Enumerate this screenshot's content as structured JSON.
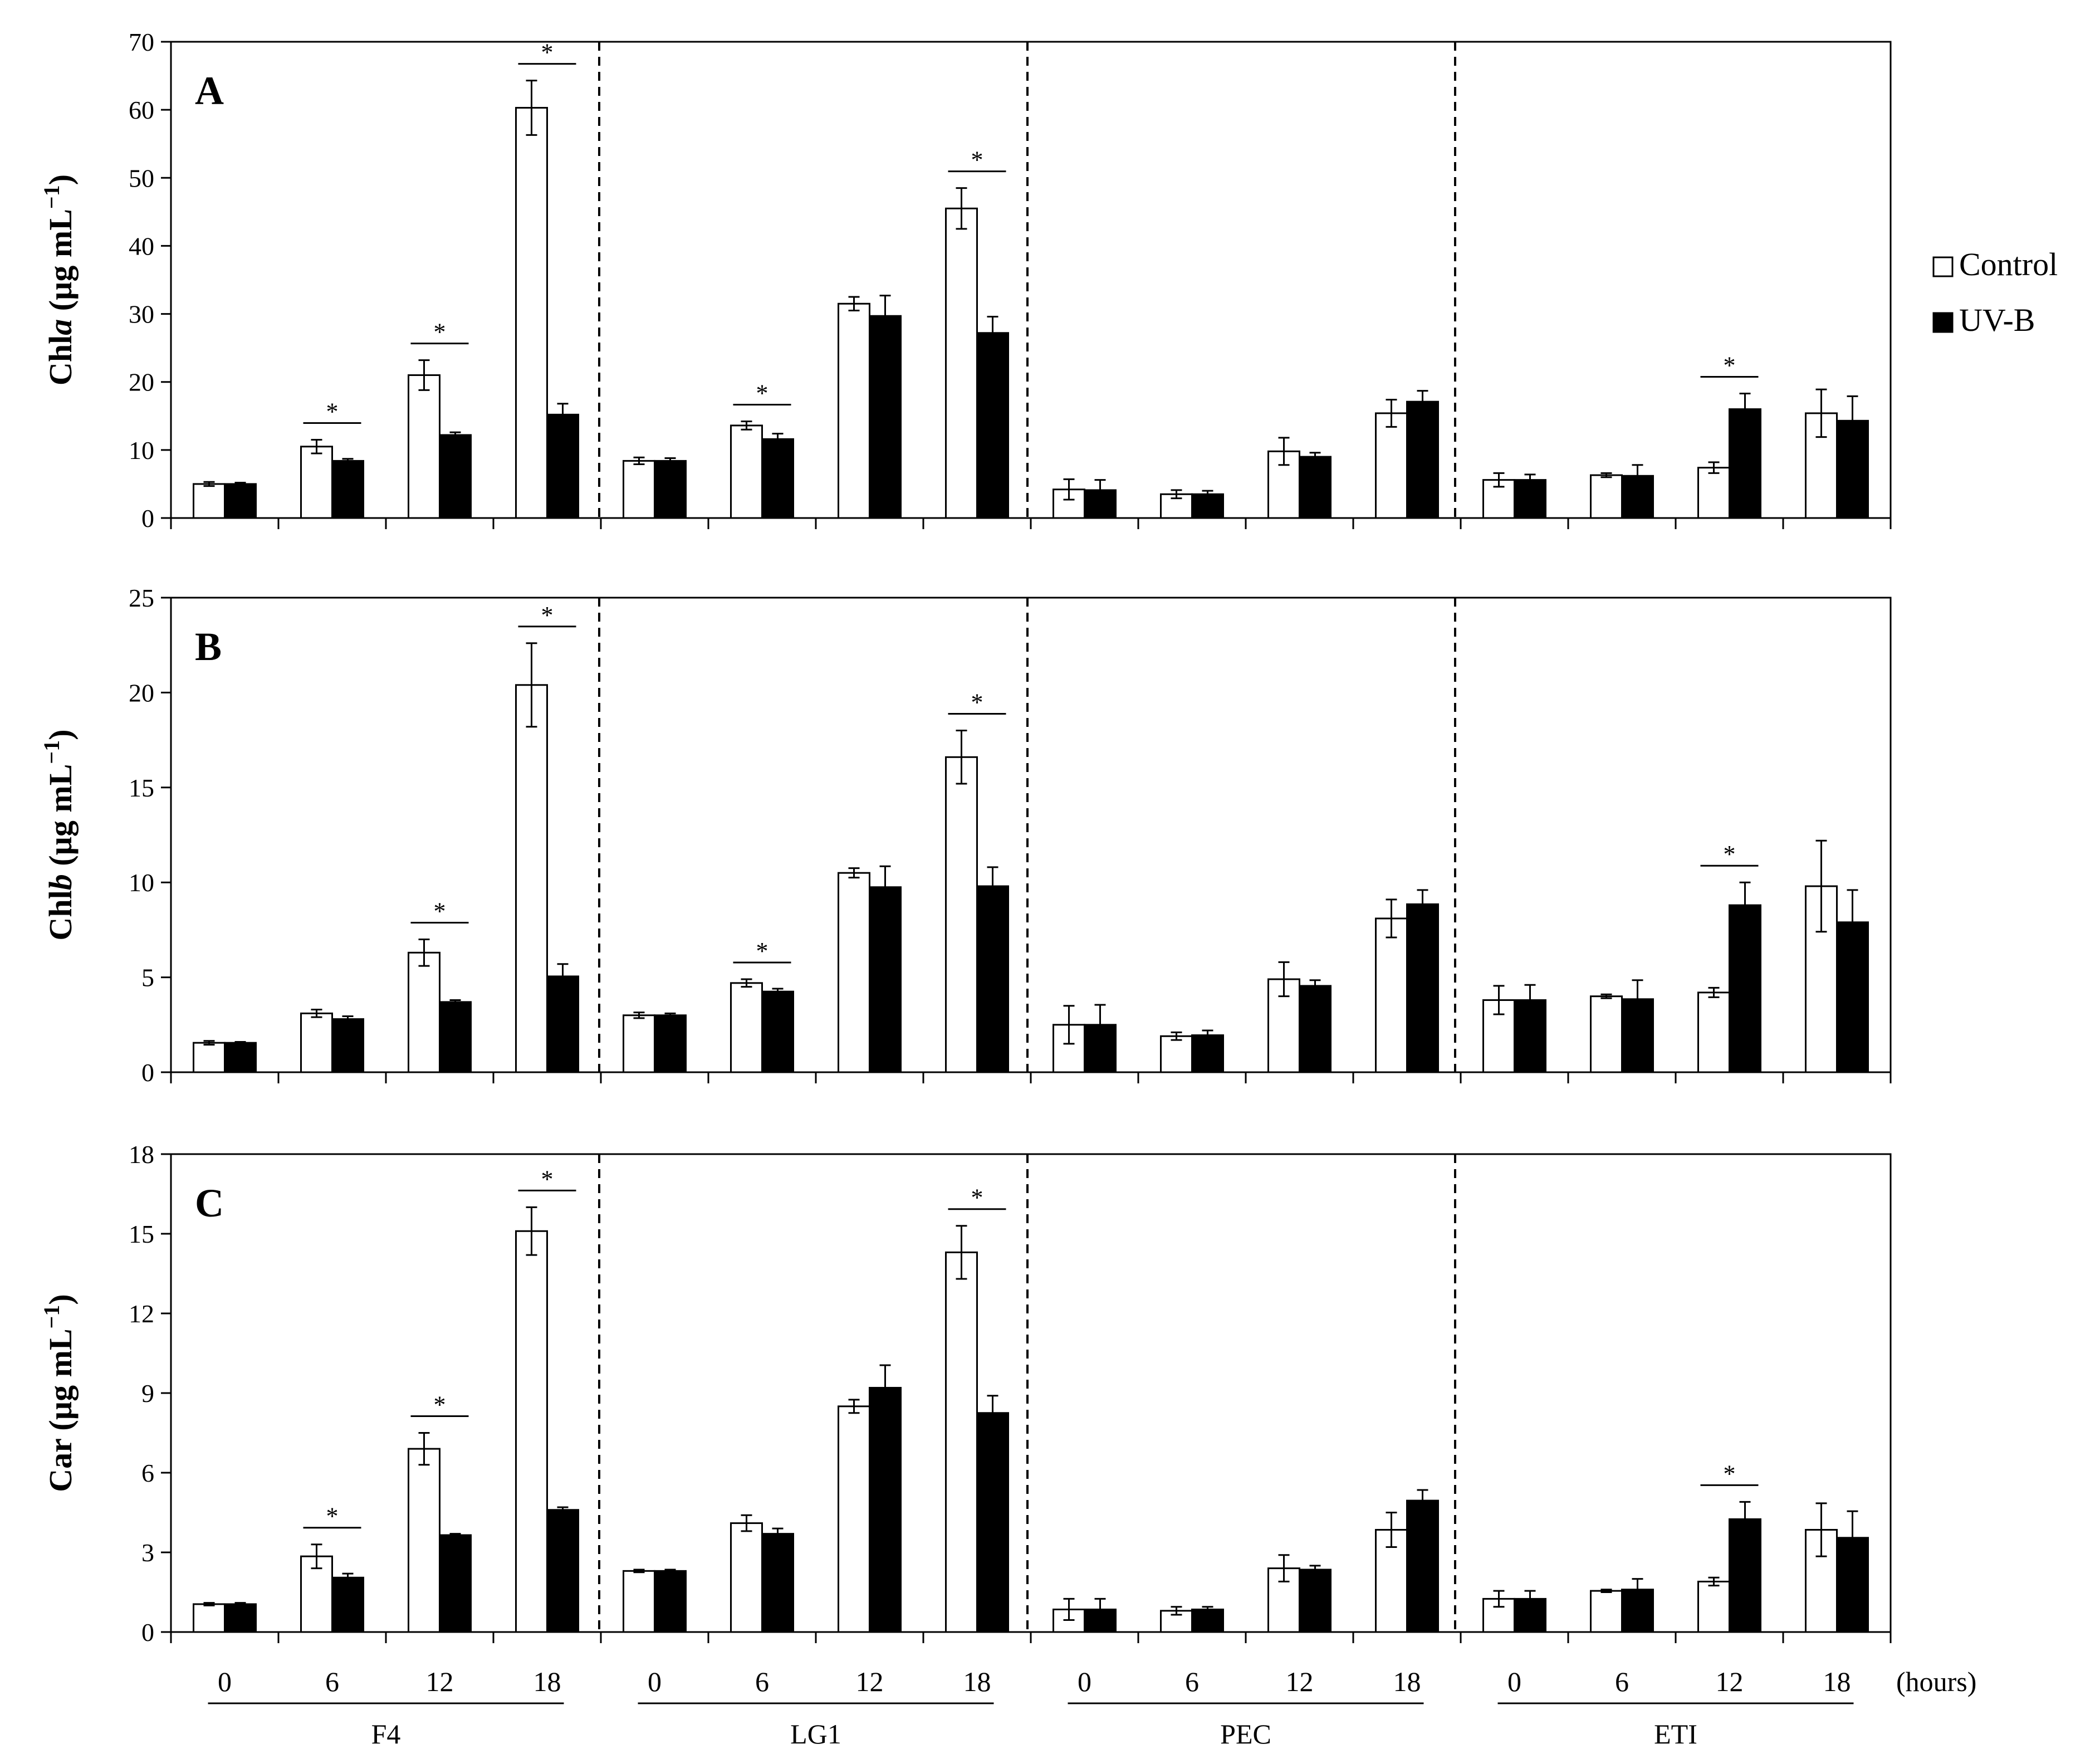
{
  "chart_data": {
    "type": "bar",
    "legend": {
      "position": "right",
      "entries": [
        {
          "name": "Control",
          "color": "#ffffff"
        },
        {
          "name": "UV-B",
          "color": "#000000"
        }
      ]
    },
    "groups": [
      "F4",
      "LG1",
      "PEC",
      "ETI"
    ],
    "times": [
      "0",
      "6",
      "12",
      "18"
    ],
    "x_unit": "(hours)",
    "panels": [
      {
        "letter": "A",
        "ylabel_pre": "Chl",
        "ylabel_italic": "a",
        "ylabel_post": " (µg mL",
        "ylabel_sup": "−1",
        "ylabel_close": ")",
        "ylim": [
          0,
          70
        ],
        "yticks": [
          "0",
          "10",
          "20",
          "30",
          "40",
          "50",
          "60",
          "70"
        ],
        "control": [
          5.0,
          10.5,
          21.0,
          60.3,
          8.4,
          13.6,
          31.5,
          45.5,
          4.2,
          3.5,
          9.8,
          15.4,
          5.6,
          6.3,
          7.4,
          15.4
        ],
        "control_err": [
          0.3,
          1.0,
          2.2,
          4.0,
          0.5,
          0.6,
          1.0,
          3.0,
          1.5,
          0.6,
          2.0,
          2.0,
          1.0,
          0.3,
          0.8,
          3.5
        ],
        "uvb": [
          5.0,
          8.4,
          12.2,
          15.2,
          8.4,
          11.6,
          29.7,
          27.2,
          4.1,
          3.5,
          9.0,
          17.1,
          5.6,
          6.2,
          16.0,
          14.3
        ],
        "uvb_err": [
          0.2,
          0.3,
          0.4,
          1.6,
          0.4,
          0.8,
          3.0,
          2.4,
          1.5,
          0.5,
          0.6,
          1.6,
          0.8,
          1.6,
          2.3,
          3.6
        ],
        "significant": [
          1,
          2,
          3,
          5,
          7,
          14
        ]
      },
      {
        "letter": "B",
        "ylabel_pre": "Chl",
        "ylabel_italic": "b",
        "ylabel_post": " (µg mL",
        "ylabel_sup": "−1",
        "ylabel_close": ")",
        "ylim": [
          0,
          25
        ],
        "yticks": [
          "0",
          "5",
          "10",
          "15",
          "20",
          "25"
        ],
        "control": [
          1.55,
          3.1,
          6.3,
          20.4,
          3.0,
          4.7,
          10.5,
          16.6,
          2.5,
          1.9,
          4.9,
          8.1,
          3.8,
          4.0,
          4.2,
          9.8
        ],
        "control_err": [
          0.1,
          0.2,
          0.7,
          2.2,
          0.15,
          0.2,
          0.25,
          1.4,
          1.0,
          0.2,
          0.9,
          1.0,
          0.75,
          0.1,
          0.25,
          2.4
        ],
        "uvb": [
          1.55,
          2.8,
          3.7,
          5.05,
          3.0,
          4.25,
          9.75,
          9.8,
          2.5,
          1.95,
          4.55,
          8.85,
          3.8,
          3.85,
          8.8,
          7.9
        ],
        "uvb_err": [
          0.05,
          0.15,
          0.1,
          0.65,
          0.1,
          0.15,
          1.1,
          1.0,
          1.05,
          0.25,
          0.3,
          0.75,
          0.8,
          1.0,
          1.2,
          1.7
        ],
        "significant": [
          2,
          3,
          5,
          7,
          14
        ]
      },
      {
        "letter": "C",
        "ylabel_pre": "Car",
        "ylabel_italic": "",
        "ylabel_post": " (µg mL",
        "ylabel_sup": "−1",
        "ylabel_close": ")",
        "ylim": [
          0,
          18
        ],
        "yticks": [
          "0",
          "3",
          "6",
          "9",
          "12",
          "15",
          "18"
        ],
        "control": [
          1.05,
          2.85,
          6.9,
          15.1,
          2.3,
          4.1,
          8.5,
          14.3,
          0.85,
          0.8,
          2.4,
          3.85,
          1.25,
          1.55,
          1.9,
          3.85
        ],
        "control_err": [
          0.05,
          0.45,
          0.6,
          0.9,
          0.05,
          0.3,
          0.25,
          1.0,
          0.4,
          0.15,
          0.5,
          0.65,
          0.3,
          0.05,
          0.15,
          1.0
        ],
        "uvb": [
          1.05,
          2.05,
          3.65,
          4.6,
          2.3,
          3.7,
          9.2,
          8.25,
          0.85,
          0.85,
          2.35,
          4.95,
          1.25,
          1.6,
          4.25,
          3.55
        ],
        "uvb_err": [
          0.05,
          0.15,
          0.05,
          0.1,
          0.05,
          0.2,
          0.85,
          0.65,
          0.4,
          0.1,
          0.15,
          0.4,
          0.3,
          0.4,
          0.65,
          1.0
        ],
        "significant": [
          1,
          2,
          3,
          7,
          14
        ]
      }
    ]
  }
}
